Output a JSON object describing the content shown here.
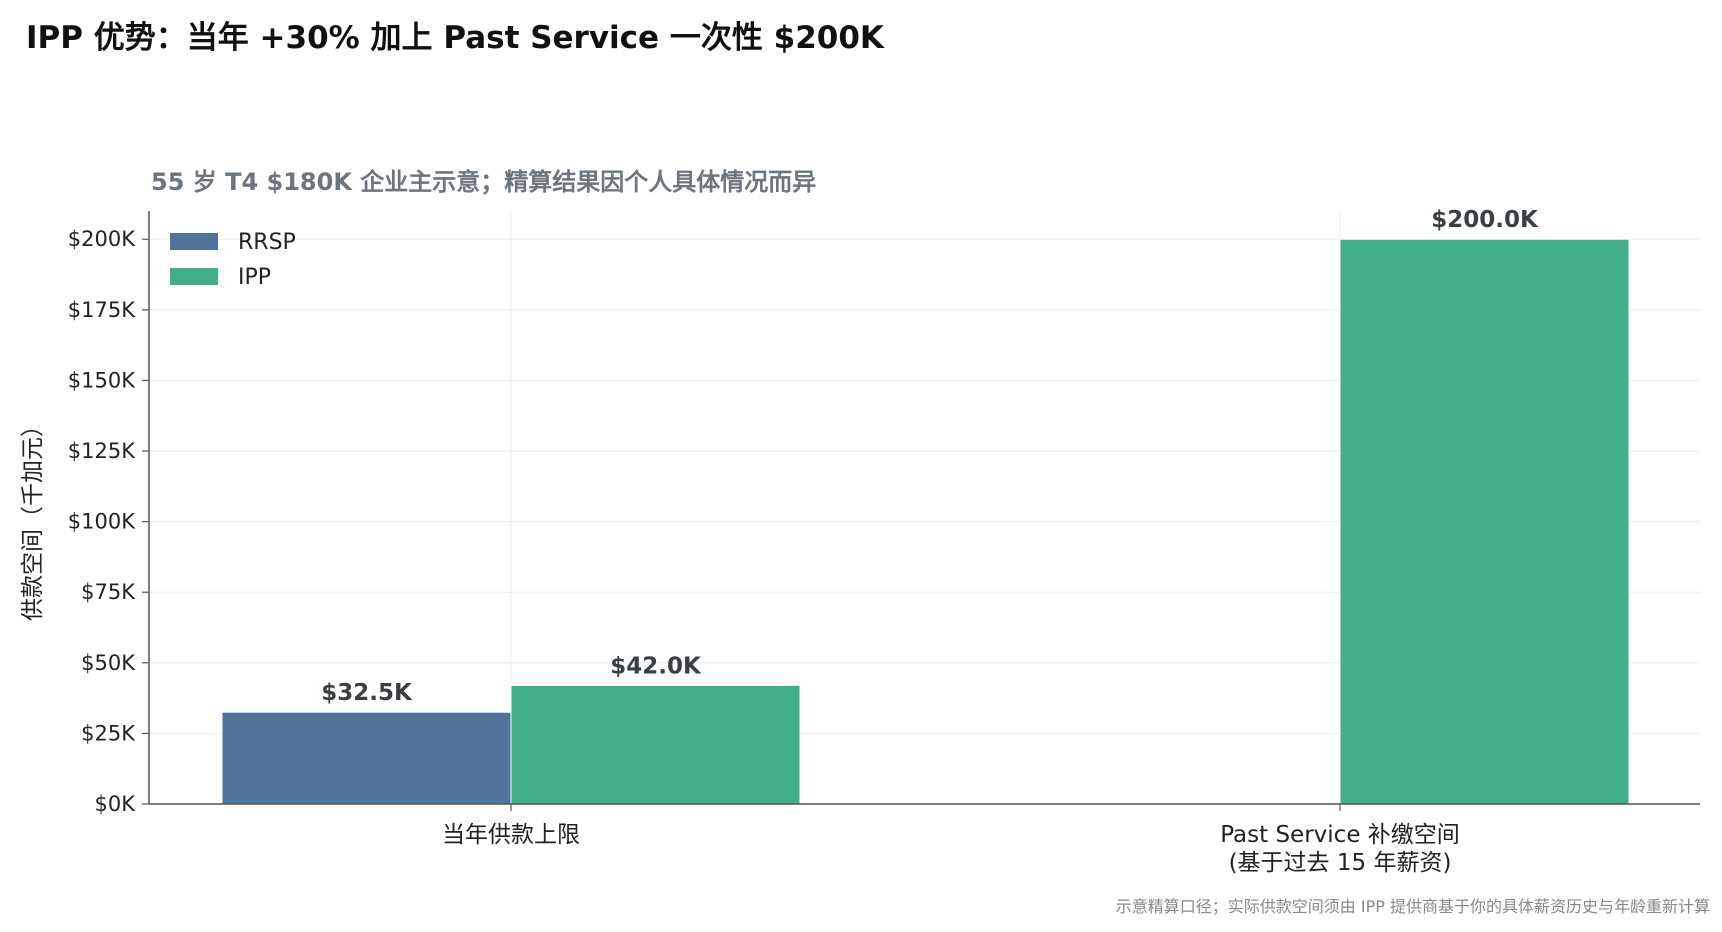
{
  "title": "IPP 优势：当年 +30% 加上 Past Service 一次性 $200K",
  "footnote": "示意精算口径；实际供款空间须由 IPP 提供商基于你的具体薪资历史与年龄重新计算",
  "chart_data": {
    "type": "bar",
    "subtitle": "55 岁 T4 $180K 企业主示意；精算结果因个人具体情况而异",
    "ylabel": "供款空间（千加元）",
    "xlabel": "",
    "categories": [
      [
        "当年供款上限"
      ],
      [
        "Past Service 补缴空间",
        "(基于过去 15 年薪资)"
      ]
    ],
    "series": [
      {
        "name": "RRSP",
        "color": "#4e7499",
        "values": [
          32.5,
          null
        ],
        "labels": [
          "$32.5K",
          ""
        ]
      },
      {
        "name": "IPP",
        "color": "#3fae89",
        "values": [
          42.0,
          200.0
        ],
        "labels": [
          "$42.0K",
          "$200.0K"
        ]
      }
    ],
    "ylim": [
      0,
      210
    ],
    "yticks": [
      0,
      25,
      50,
      75,
      100,
      125,
      150,
      175,
      200
    ],
    "ytick_labels": [
      "$0K",
      "$25K",
      "$50K",
      "$75K",
      "$100K",
      "$125K",
      "$150K",
      "$175K",
      "$200K"
    ],
    "grid": true,
    "legend": "top-left"
  }
}
